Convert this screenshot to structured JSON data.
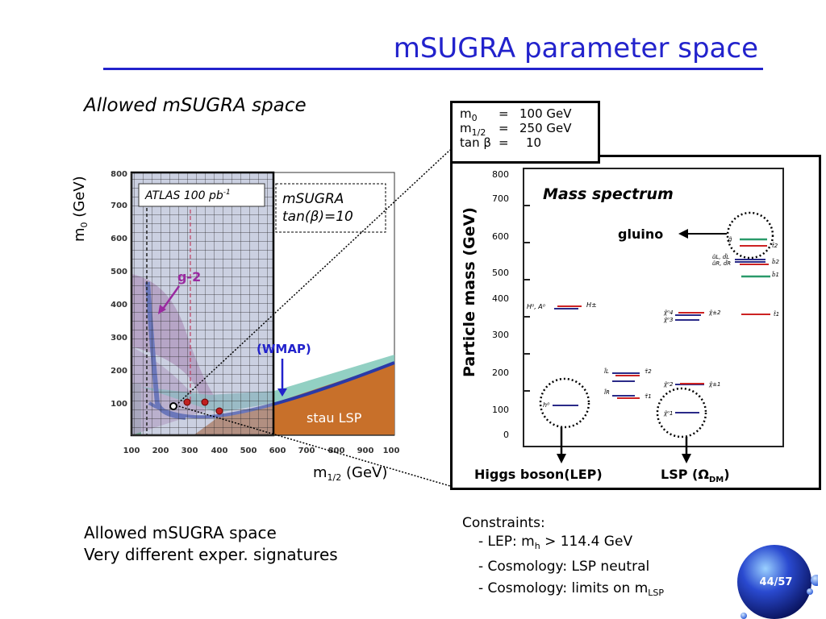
{
  "title": "mSUGRA parameter space",
  "allowed_heading": "Allowed mSUGRA space",
  "params": {
    "m0": {
      "name": "m",
      "sub": "0",
      "eq": "=",
      "value": "100 GeV"
    },
    "m12": {
      "name": "m",
      "sub": "1/2",
      "eq": "=",
      "value": "250 GeV"
    },
    "tanb": {
      "name": "tan β",
      "eq": "=",
      "value": "10"
    }
  },
  "left_plot": {
    "ylabel": "m",
    "ylabel_sub": "0",
    "ylabel_unit": "(GeV)",
    "xlabel": "m",
    "xlabel_sub": "1/2",
    "xlabel_unit": "(GeV)",
    "atlas_label": "ATLAS 100 pb",
    "atlas_sup": "-1",
    "msugra_label_1": "mSUGRA",
    "msugra_label_2": "tan(β)=10",
    "g2_label": "g-2",
    "wmap_label": "(WMAP)",
    "stau_label": "stau LSP",
    "x_ticks": [
      "100",
      "200",
      "300",
      "400",
      "500",
      "600",
      "700",
      "800",
      "900",
      "100"
    ],
    "y_ticks": [
      "100",
      "200",
      "300",
      "400",
      "500",
      "600",
      "700",
      "800"
    ]
  },
  "right_plot": {
    "title": "Mass spectrum",
    "ylabel": "Particle mass (GeV)",
    "y_ticks": [
      "800",
      "700",
      "600",
      "500",
      "400",
      "300",
      "200",
      "100",
      "0"
    ],
    "gluino_label": "gluino",
    "higgs_label": "Higgs boson(LEP)",
    "lsp_label": "LSP (",
    "lsp_omega": "Ω",
    "lsp_sub": "DM",
    "lsp_close": ")"
  },
  "bottom_left": {
    "line1": "Allowed mSUGRA space",
    "line2": "Very different exper. signatures"
  },
  "constraints": {
    "heading": "Constraints:",
    "c1_prefix": "- LEP: m",
    "c1_sub": "h",
    "c1_suffix": " > 114.4 GeV",
    "c2": "- Cosmology: LSP neutral",
    "c3_prefix": "-  Cosmology: limits on m",
    "c3_sub": "LSP"
  },
  "page": "44/57",
  "colors": {
    "accent": "#2222cc"
  }
}
